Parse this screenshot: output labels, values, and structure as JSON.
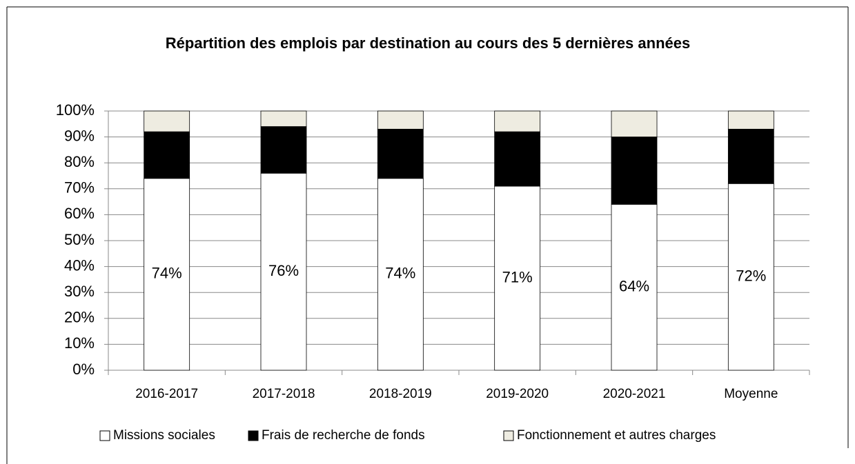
{
  "chart_data": {
    "type": "stacked_bar",
    "title": "Répartition des emplois par destination au cours des 5 dernières années",
    "categories": [
      "2016-2017",
      "2017-2018",
      "2018-2019",
      "2019-2020",
      "2020-2021",
      "Moyenne"
    ],
    "series": [
      {
        "name": "Missions sociales",
        "color": "#ffffff",
        "values": [
          74,
          76,
          74,
          71,
          64,
          72
        ],
        "value_labels": [
          "74%",
          "76%",
          "74%",
          "71%",
          "64%",
          "72%"
        ]
      },
      {
        "name": "Frais de recherche de fonds",
        "color": "#000000",
        "values": [
          18,
          18,
          19,
          21,
          26,
          21
        ]
      },
      {
        "name": "Fonctionnement et autres charges",
        "color": "#eeece1",
        "values": [
          8,
          6,
          7,
          8,
          10,
          7
        ]
      }
    ],
    "ylim": [
      0,
      100
    ],
    "yticks": [
      {
        "value": 0,
        "label": "0%"
      },
      {
        "value": 10,
        "label": "10%"
      },
      {
        "value": 20,
        "label": "20%"
      },
      {
        "value": 30,
        "label": "30%"
      },
      {
        "value": 40,
        "label": "40%"
      },
      {
        "value": 50,
        "label": "50%"
      },
      {
        "value": 60,
        "label": "60%"
      },
      {
        "value": 70,
        "label": "70%"
      },
      {
        "value": 80,
        "label": "80%"
      },
      {
        "value": 90,
        "label": "90%"
      },
      {
        "value": 100,
        "label": "100%"
      }
    ],
    "grid": true,
    "legend": "bottom"
  }
}
